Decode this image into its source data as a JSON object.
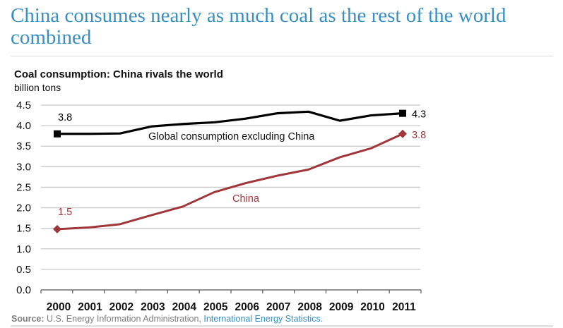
{
  "headline": "China consumes nearly as much coal as the rest of the world combined",
  "source": {
    "label": "Source:",
    "text": " U.S. Energy Information Administration, ",
    "link_text": "International Energy Statistics",
    "end": "."
  },
  "colors": {
    "headline": "#3a8fc0",
    "global_series": "#000000",
    "china_series": "#a0363a",
    "gridline": "#c8c8c8"
  },
  "chart_data": {
    "type": "line",
    "title": "Coal consumption: China rivals the world",
    "ylabel": "billion tons",
    "xlabel": "",
    "ylim": [
      0,
      4.5
    ],
    "yticks": [
      "0.0",
      "0.5",
      "1.0",
      "1.5",
      "2.0",
      "2.5",
      "3.0",
      "3.5",
      "4.0",
      "4.5"
    ],
    "x": [
      "2000",
      "2001",
      "2002",
      "2003",
      "2004",
      "2005",
      "2006",
      "2007",
      "2008",
      "2009",
      "2010",
      "2011"
    ],
    "grid": true,
    "legend": "inline labels",
    "series": [
      {
        "name": "Global consumption excluding China",
        "color": "#000000",
        "marker": "square",
        "values": [
          3.8,
          3.8,
          3.81,
          3.98,
          4.04,
          4.08,
          4.17,
          4.3,
          4.34,
          4.12,
          4.25,
          4.3
        ],
        "start_label": "3.8",
        "end_label": "4.3"
      },
      {
        "name": "China",
        "color": "#a0363a",
        "marker": "diamond",
        "values": [
          1.48,
          1.52,
          1.6,
          1.82,
          2.03,
          2.38,
          2.6,
          2.78,
          2.93,
          3.23,
          3.45,
          3.8
        ],
        "start_label": "1.5",
        "end_label": "3.8"
      }
    ]
  }
}
